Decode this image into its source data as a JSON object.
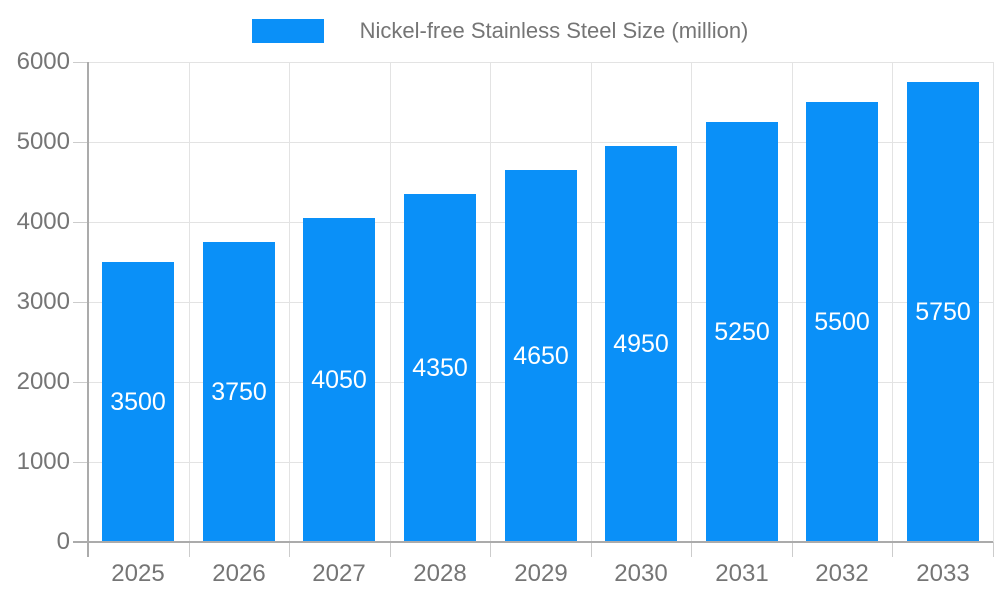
{
  "chart_data": {
    "type": "bar",
    "title": "Nickel-free Stainless Steel Size (million)",
    "categories": [
      "2025",
      "2026",
      "2027",
      "2028",
      "2029",
      "2030",
      "2031",
      "2032",
      "2033"
    ],
    "values": [
      3500,
      3750,
      4050,
      4350,
      4650,
      4950,
      5250,
      5500,
      5750
    ],
    "xlabel": "",
    "ylabel": "",
    "ylim": [
      0,
      6000
    ],
    "yticks": [
      0,
      1000,
      2000,
      3000,
      4000,
      5000,
      6000
    ],
    "grid": true,
    "legend_position": "top-center",
    "bar_color": "#0a90f8",
    "bar_label_color": "#ffffff",
    "axis_text_color": "#757575",
    "gridline_color": "#e3e3e3",
    "tick_color": "#cccccc",
    "axis_line_color": "#ababab"
  }
}
